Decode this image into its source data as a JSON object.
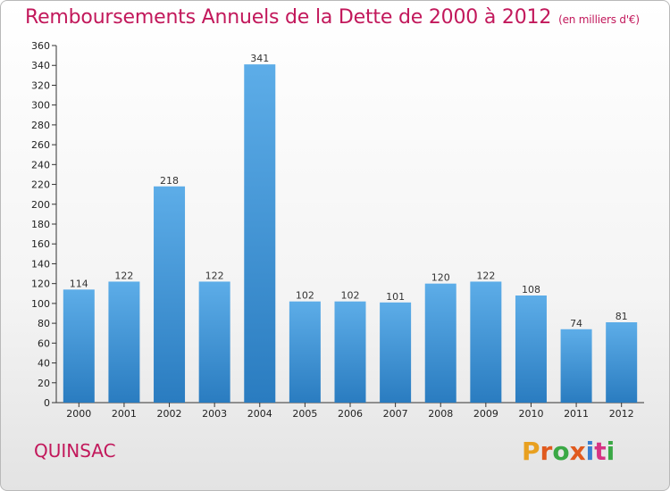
{
  "header": {
    "title": "Remboursements Annuels de la Dette de 2000 à 2012",
    "unit": "(en milliers d'€)"
  },
  "footer": {
    "commune": "QUINSAC",
    "logo_text": "Proxiti"
  },
  "colors": {
    "accent": "#c2185b",
    "bar_top": "#5dade8",
    "bar_bottom": "#2a7cc0",
    "logo": [
      "#e8a020",
      "#e05a1e",
      "#3aa845",
      "#e05a1e",
      "#3a7fd0",
      "#d63384",
      "#3aa845"
    ]
  },
  "chart_data": {
    "type": "bar",
    "title": "Remboursements Annuels de la Dette de 2000 à 2012",
    "subtitle": "(en milliers d'€)",
    "categories": [
      "2000",
      "2001",
      "2002",
      "2003",
      "2004",
      "2005",
      "2006",
      "2007",
      "2008",
      "2009",
      "2010",
      "2011",
      "2012"
    ],
    "values": [
      114,
      122,
      218,
      122,
      341,
      102,
      102,
      101,
      120,
      122,
      108,
      74,
      81
    ],
    "xlabel": "",
    "ylabel": "",
    "ylim": [
      0,
      360
    ],
    "ytick_step": 20,
    "grid": false
  }
}
